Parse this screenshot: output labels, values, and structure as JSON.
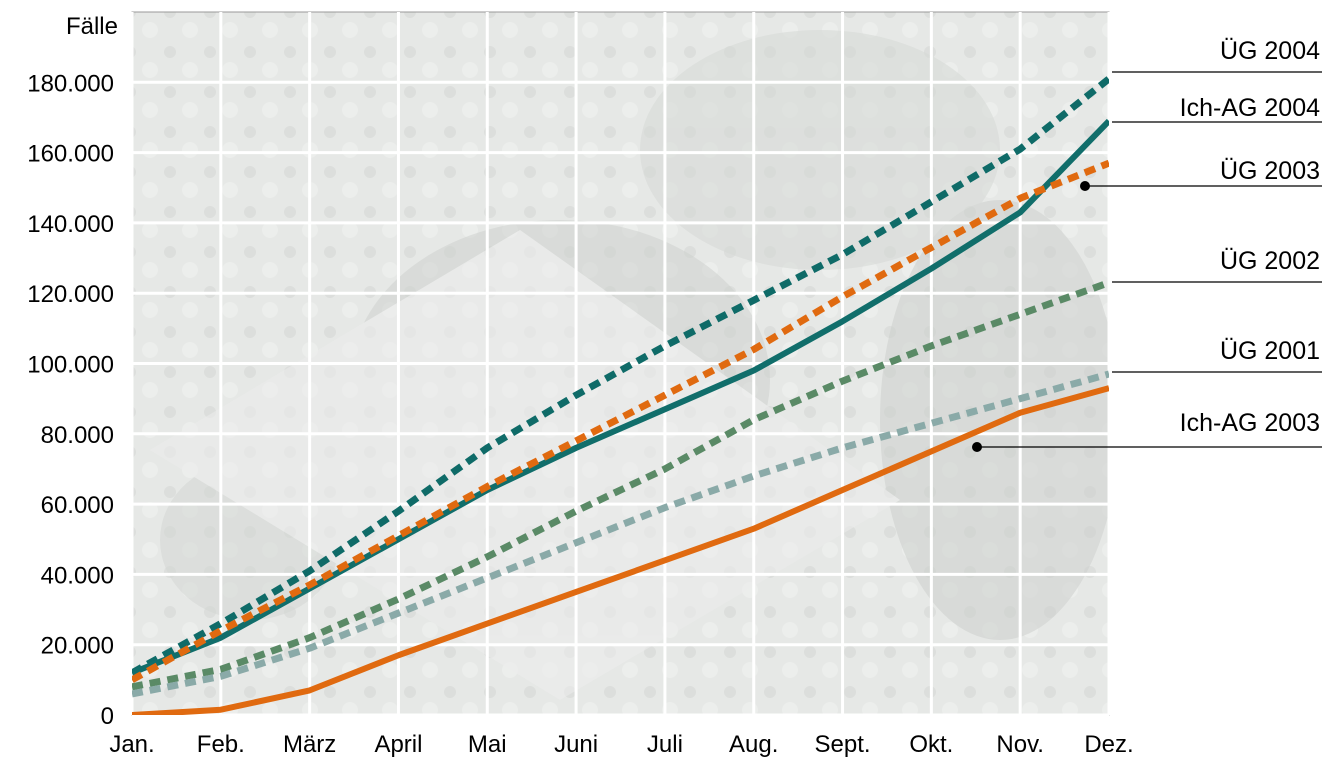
{
  "chart_data": {
    "type": "line",
    "ylabel": "Fälle",
    "xlabel": "",
    "title": "",
    "categories": [
      "Jan.",
      "Feb.",
      "März",
      "April",
      "Mai",
      "Juni",
      "Juli",
      "Aug.",
      "Sept.",
      "Okt.",
      "Nov.",
      "Dez."
    ],
    "ylim": [
      0,
      200000
    ],
    "yticks": [
      0,
      20000,
      40000,
      60000,
      80000,
      100000,
      120000,
      140000,
      160000,
      180000
    ],
    "ytick_labels": [
      "0",
      "20.000",
      "40.000",
      "60.000",
      "80.000",
      "100.000",
      "120.000",
      "140.000",
      "160.000",
      "180.000"
    ],
    "grid": true,
    "background": "faded photo of euro coins and banknotes",
    "legend_placement": "right (callout labels with leader lines)",
    "series": [
      {
        "name": "ÜG 2004",
        "style": "dashed",
        "color": "#0f6b68",
        "values": [
          12000,
          26000,
          41000,
          58000,
          76000,
          91000,
          105000,
          118000,
          131000,
          146000,
          161000,
          181000
        ]
      },
      {
        "name": "Ich-AG 2004",
        "style": "solid",
        "color": "#116e6b",
        "values": [
          12000,
          22000,
          36000,
          50000,
          64000,
          76000,
          87000,
          98000,
          112000,
          127000,
          143000,
          169000
        ]
      },
      {
        "name": "ÜG 2003",
        "style": "dashed",
        "color": "#e06a10",
        "values": [
          10000,
          24000,
          37000,
          51000,
          65000,
          78000,
          91000,
          104000,
          119000,
          133000,
          147000,
          157000
        ]
      },
      {
        "name": "ÜG 2002",
        "style": "dashed",
        "color": "#5a8a66",
        "values": [
          8000,
          13000,
          22000,
          33000,
          45000,
          58000,
          70000,
          84000,
          95000,
          105000,
          114000,
          123000
        ]
      },
      {
        "name": "ÜG 2001",
        "style": "dashed",
        "color": "#8aaaa8",
        "values": [
          6000,
          11000,
          19000,
          29000,
          39000,
          49000,
          59000,
          68000,
          76000,
          83000,
          90000,
          97000
        ]
      },
      {
        "name": "Ich-AG 2003",
        "style": "solid",
        "color": "#e06a10",
        "values": [
          0,
          1500,
          7000,
          17000,
          26000,
          35000,
          44000,
          53000,
          64000,
          75000,
          86000,
          93000
        ]
      }
    ]
  }
}
